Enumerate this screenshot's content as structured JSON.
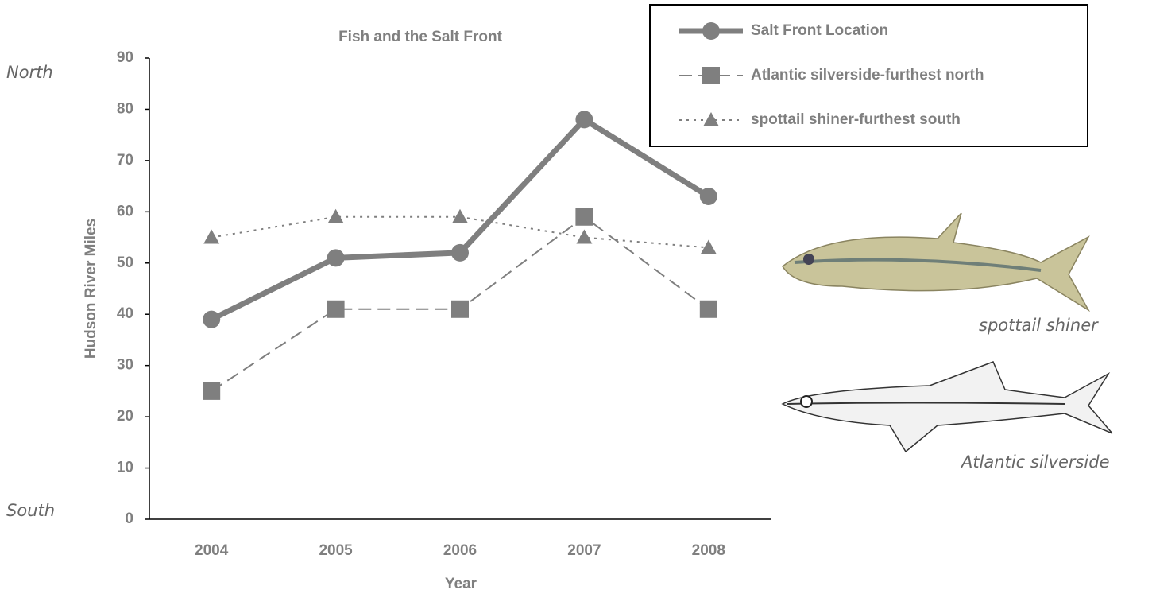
{
  "chart_data": {
    "type": "line",
    "title": "Fish and the Salt Front",
    "x_label": "Year",
    "y_label": "Hudson River Miles",
    "annotations": [
      "North",
      "South",
      "spottail shiner",
      "Atlantic silverside"
    ],
    "categories": [
      "2004",
      "2005",
      "2006",
      "2007",
      "2008"
    ],
    "series": [
      {
        "name": "Salt Front Location",
        "color": "#7f7f7f",
        "line_style": "solid",
        "marker": "circle",
        "values": [
          39,
          51,
          52,
          78,
          63
        ]
      },
      {
        "name": "Atlantic silverside-furthest north",
        "color": "#7f7f7f",
        "line_style": "dashed",
        "marker": "square",
        "values": [
          25,
          41,
          41,
          59,
          41
        ]
      },
      {
        "name": "spottail shiner-furthest south",
        "color": "#7f7f7f",
        "line_style": "dotted",
        "marker": "triangle",
        "values": [
          55,
          59,
          59,
          55,
          53
        ]
      }
    ],
    "ylim": [
      0,
      90
    ],
    "yticks": [
      0,
      10,
      20,
      30,
      40,
      50,
      60,
      70,
      80,
      90
    ],
    "grid": false,
    "legend": "top-right"
  }
}
